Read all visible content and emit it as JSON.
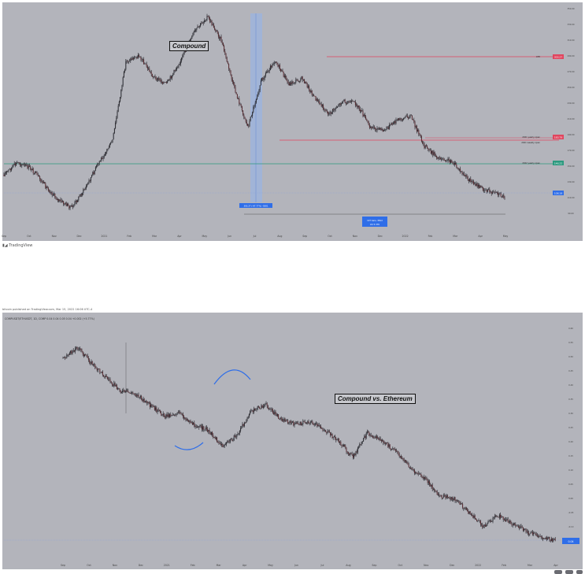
{
  "footer": {
    "brand": "TradingView"
  },
  "published_line": "bitcoin published on TradingView.com, Mar 15, 2022 16:06 UTC-4",
  "colors": {
    "panel_bg": "#b3b4bb",
    "candle": "#1c1c22",
    "red_level": "#e0455e",
    "green_level": "#2c9a7f",
    "blue_mark": "#2f6ee8",
    "hl_band": "#9ab3e2"
  },
  "chart_data": [
    {
      "type": "line",
      "title": "Compound",
      "annotation": "Compound",
      "x_ticks": [
        "Sep",
        "Oct",
        "Nov",
        "Dec",
        "2021",
        "Feb",
        "Mar",
        "Apr",
        "May",
        "Jun",
        "Jul",
        "Aug",
        "Sep",
        "Oct",
        "Nov",
        "Dec",
        "2022",
        "Feb",
        "Mar",
        "Apr",
        "May"
      ],
      "series": [
        {
          "values": [
            142,
            158,
            150,
            128,
            108,
            98,
            124,
            158,
            186,
            292,
            300,
            272,
            262,
            292,
            330,
            352,
            322,
            256,
            205,
            268,
            294,
            262,
            270,
            242,
            222,
            240,
            236,
            206,
            200,
            214,
            220,
            180,
            165,
            160,
            140,
            126,
            118,
            112
          ]
        }
      ],
      "levels": [
        {
          "label": "ATH",
          "tag": "303.27",
          "color": "#e0455e"
        },
        {
          "label": "2021 yearly open",
          "tag": "183.79",
          "color": "#e0455e"
        },
        {
          "label": "2021 weekly open",
          "tag": "",
          "color": "#e0455e"
        },
        {
          "label": "2022 yearly open",
          "tag": "146.22",
          "color": "#2c9a7f"
        }
      ],
      "last_price_tag": "108.18",
      "range_box": "303.27 (-97.77%) -5001",
      "range_info": "107 bars, 381d",
      "range_sub": "Vol 5.37K"
    },
    {
      "type": "line",
      "title": "Compound vs. Ethereum",
      "annotation": "Compound vs. Ethereum",
      "symbol_line": "COMPUSDT/ETHUSDT, 1D, COMP  0.04  0.04  0.05  0.04  +0.002 (+5.77%)",
      "x_ticks": [
        "Sep",
        "Oct",
        "Nov",
        "Dec",
        "2021",
        "Feb",
        "Mar",
        "Apr",
        "May",
        "Jun",
        "Jul",
        "Aug",
        "Sep",
        "Oct",
        "Nov",
        "Dec",
        "2022",
        "Feb",
        "Mar",
        "Apr"
      ],
      "series": [
        {
          "values": [
            0.54,
            0.58,
            0.52,
            0.47,
            0.42,
            0.41,
            0.37,
            0.33,
            0.34,
            0.3,
            0.28,
            0.22,
            0.26,
            0.35,
            0.37,
            0.32,
            0.3,
            0.31,
            0.28,
            0.24,
            0.18,
            0.27,
            0.24,
            0.2,
            0.14,
            0.1,
            0.04,
            0.03,
            -0.02,
            -0.07,
            -0.03,
            -0.06,
            -0.09,
            -0.11,
            -0.12
          ]
        }
      ],
      "last_price_tag": "0.04"
    }
  ]
}
